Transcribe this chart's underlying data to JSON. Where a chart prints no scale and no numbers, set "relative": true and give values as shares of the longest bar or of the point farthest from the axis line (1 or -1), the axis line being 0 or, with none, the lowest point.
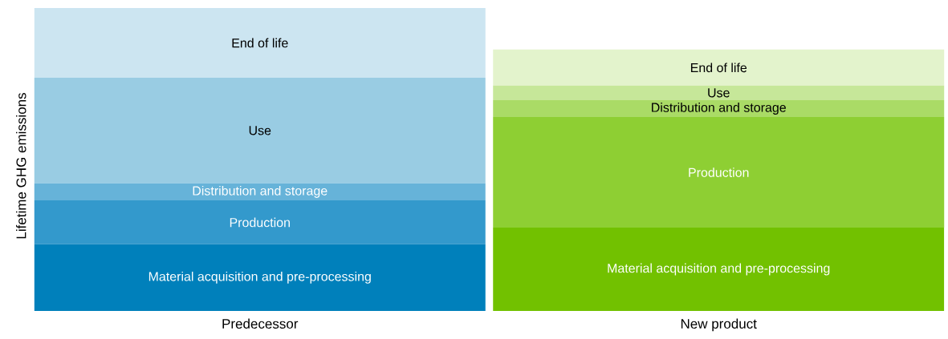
{
  "chart_data": {
    "type": "bar",
    "stacked": true,
    "relative": true,
    "ylabel": "Lifetime GHG emissions",
    "categories": [
      "Predecessor",
      "New product"
    ],
    "series": [
      {
        "name": "Material acquisition and pre-processing",
        "colors": [
          "#0080bb",
          "#72c100"
        ],
        "values": [
          0.22,
          0.275
        ]
      },
      {
        "name": "Production",
        "colors": [
          "#3399cc",
          "#8ecf33"
        ],
        "values": [
          0.145,
          0.365
        ]
      },
      {
        "name": "Distribution and storage",
        "colors": [
          "#66b3d9",
          "#aadb66"
        ],
        "values": [
          0.056,
          0.056
        ]
      },
      {
        "name": "Use",
        "colors": [
          "#99cce3",
          "#c6e799"
        ],
        "values": [
          0.349,
          0.048
        ]
      },
      {
        "name": "End of life",
        "colors": [
          "#cce5f1",
          "#e3f3cc"
        ],
        "values": [
          0.23,
          0.119
        ]
      }
    ]
  }
}
